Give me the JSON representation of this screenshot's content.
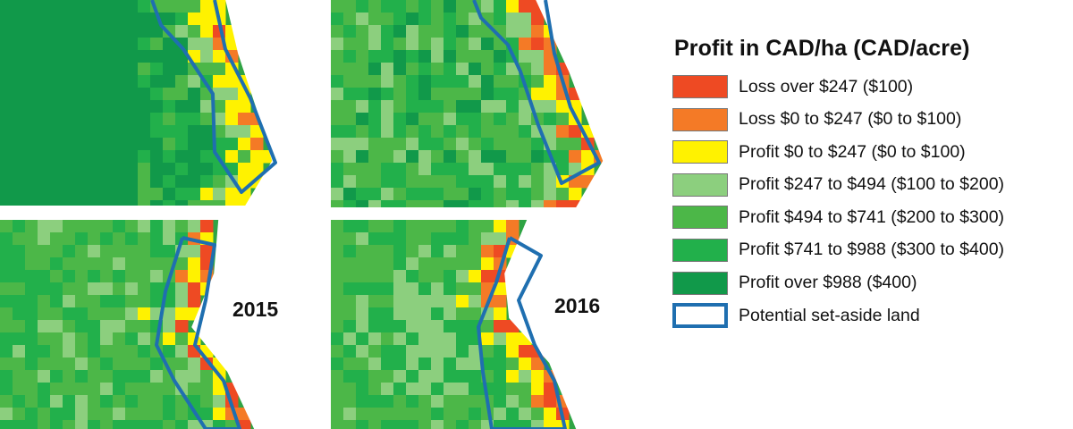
{
  "legend": {
    "title": "Profit in CAD/ha (CAD/acre)",
    "items": [
      {
        "label": "Loss over $247 ($100)",
        "color": "#ee4a23"
      },
      {
        "label": "Loss $0 to $247 ($0 to $100)",
        "color": "#f47a26"
      },
      {
        "label": "Profit $0 to $247 ($0 to $100)",
        "color": "#fff200"
      },
      {
        "label": "Profit $247 to $494 ($100 to $200)",
        "color": "#8ccf7e"
      },
      {
        "label": "Profit $494 to $741 ($200 to $300)",
        "color": "#4cb748"
      },
      {
        "label": "Profit $741 to $988 ($300 to $400)",
        "color": "#22b04b"
      },
      {
        "label": "Profit over $988 ($400)",
        "color": "#11994a"
      },
      {
        "label": "Potential set-aside land",
        "color": "#1f6fb0"
      }
    ]
  },
  "maps": {
    "year_2015": "2015",
    "year_2016": "2016"
  }
}
